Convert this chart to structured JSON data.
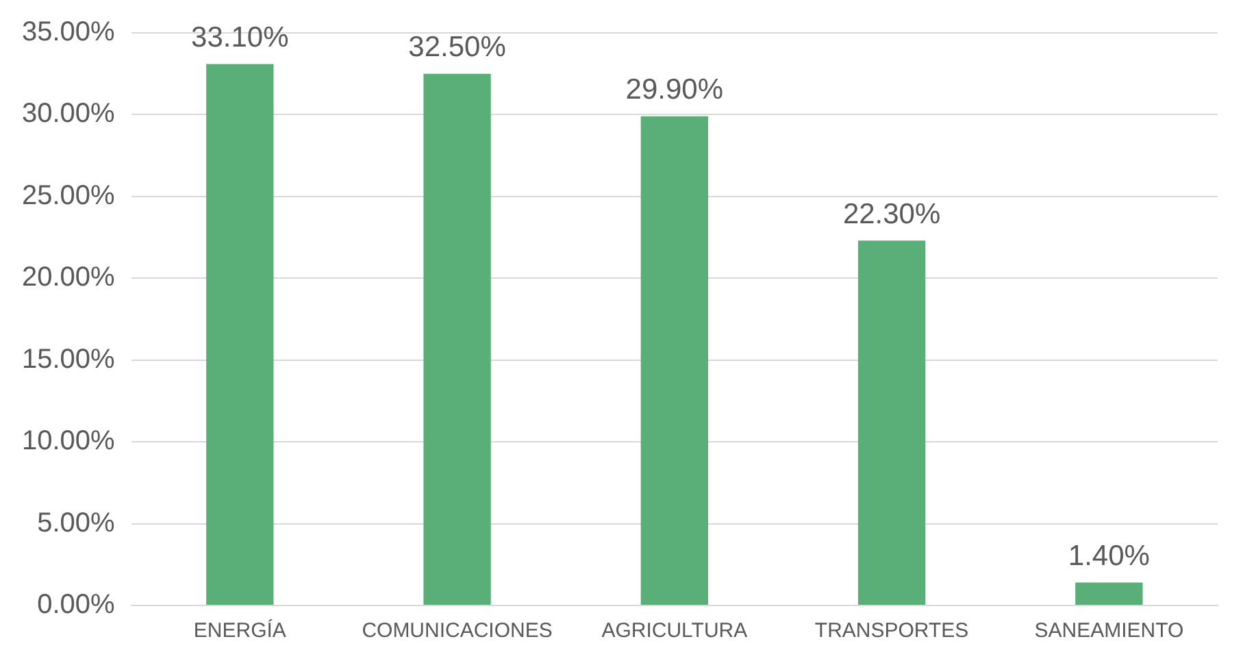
{
  "chart_data": {
    "type": "bar",
    "categories": [
      "ENERGÍA",
      "COMUNICACIONES",
      "AGRICULTURA",
      "TRANSPORTES",
      "SANEAMIENTO"
    ],
    "values": [
      33.1,
      32.5,
      29.9,
      22.3,
      1.4
    ],
    "value_labels": [
      "33.10%",
      "32.50%",
      "29.90%",
      "22.30%",
      "1.40%"
    ],
    "color": "#5aaf78",
    "ylim": [
      0,
      35
    ],
    "yticks": [
      {
        "value": 0,
        "label": "0.00%"
      },
      {
        "value": 5,
        "label": "5.00%"
      },
      {
        "value": 10,
        "label": "10.00%"
      },
      {
        "value": 15,
        "label": "15.00%"
      },
      {
        "value": 20,
        "label": "20.00%"
      },
      {
        "value": 25,
        "label": "25.00%"
      },
      {
        "value": 30,
        "label": "30.00%"
      },
      {
        "value": 35,
        "label": "35.00%"
      }
    ],
    "grid": "y",
    "legend": false
  }
}
